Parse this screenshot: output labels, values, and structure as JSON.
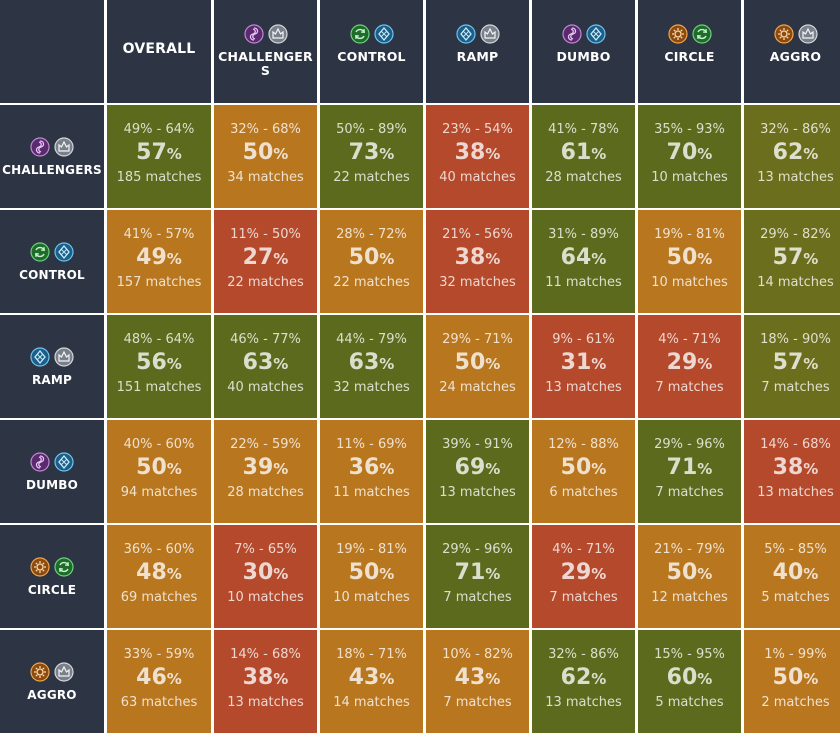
{
  "colors": {
    "header_bg": "#2d3443",
    "tier_green": "#5c6a1d",
    "tier_olive": "#6b6e1c",
    "tier_orange": "#b8761f",
    "tier_red": "#b4492b"
  },
  "percent_sign": "%",
  "matches_suffix": "matches",
  "columns": [
    {
      "key": "overall",
      "label": "OVERALL",
      "icons": []
    },
    {
      "key": "challengers",
      "label": "CHALLENGERS",
      "icons": [
        "purple-swirl-icon",
        "silver-crown-icon"
      ]
    },
    {
      "key": "control",
      "label": "CONTROL",
      "icons": [
        "green-cycle-icon",
        "blue-gem-icon"
      ]
    },
    {
      "key": "ramp",
      "label": "RAMP",
      "icons": [
        "blue-gem-icon",
        "silver-crown-icon"
      ]
    },
    {
      "key": "dumbo",
      "label": "DUMBO",
      "icons": [
        "purple-swirl-icon",
        "blue-gem-icon"
      ]
    },
    {
      "key": "circle",
      "label": "CIRCLE",
      "icons": [
        "orange-gear-icon",
        "green-cycle-icon"
      ]
    },
    {
      "key": "aggro",
      "label": "AGGRO",
      "icons": [
        "orange-gear-icon",
        "silver-crown-icon"
      ]
    }
  ],
  "rows": [
    {
      "key": "challengers",
      "label": "CHALLENGERS",
      "icons": [
        "purple-swirl-icon",
        "silver-crown-icon"
      ],
      "cells": [
        {
          "range": "49% - 64%",
          "wr": "57",
          "matches": "185",
          "tier": "green"
        },
        {
          "range": "32% - 68%",
          "wr": "50",
          "matches": "34",
          "tier": "orange"
        },
        {
          "range": "50% - 89%",
          "wr": "73",
          "matches": "22",
          "tier": "green"
        },
        {
          "range": "23% - 54%",
          "wr": "38",
          "matches": "40",
          "tier": "red"
        },
        {
          "range": "41% - 78%",
          "wr": "61",
          "matches": "28",
          "tier": "green"
        },
        {
          "range": "35% - 93%",
          "wr": "70",
          "matches": "10",
          "tier": "green"
        },
        {
          "range": "32% - 86%",
          "wr": "62",
          "matches": "13",
          "tier": "olive"
        }
      ]
    },
    {
      "key": "control",
      "label": "CONTROL",
      "icons": [
        "green-cycle-icon",
        "blue-gem-icon"
      ],
      "cells": [
        {
          "range": "41% - 57%",
          "wr": "49",
          "matches": "157",
          "tier": "orange"
        },
        {
          "range": "11% - 50%",
          "wr": "27",
          "matches": "22",
          "tier": "red"
        },
        {
          "range": "28% - 72%",
          "wr": "50",
          "matches": "22",
          "tier": "orange"
        },
        {
          "range": "21% - 56%",
          "wr": "38",
          "matches": "32",
          "tier": "red"
        },
        {
          "range": "31% - 89%",
          "wr": "64",
          "matches": "11",
          "tier": "green"
        },
        {
          "range": "19% - 81%",
          "wr": "50",
          "matches": "10",
          "tier": "orange"
        },
        {
          "range": "29% - 82%",
          "wr": "57",
          "matches": "14",
          "tier": "olive"
        }
      ]
    },
    {
      "key": "ramp",
      "label": "RAMP",
      "icons": [
        "blue-gem-icon",
        "silver-crown-icon"
      ],
      "cells": [
        {
          "range": "48% - 64%",
          "wr": "56",
          "matches": "151",
          "tier": "green"
        },
        {
          "range": "46% - 77%",
          "wr": "63",
          "matches": "40",
          "tier": "green"
        },
        {
          "range": "44% - 79%",
          "wr": "63",
          "matches": "32",
          "tier": "green"
        },
        {
          "range": "29% - 71%",
          "wr": "50",
          "matches": "24",
          "tier": "orange"
        },
        {
          "range": "9% - 61%",
          "wr": "31",
          "matches": "13",
          "tier": "red"
        },
        {
          "range": "4% - 71%",
          "wr": "29",
          "matches": "7",
          "tier": "red"
        },
        {
          "range": "18% - 90%",
          "wr": "57",
          "matches": "7",
          "tier": "olive"
        }
      ]
    },
    {
      "key": "dumbo",
      "label": "DUMBO",
      "icons": [
        "purple-swirl-icon",
        "blue-gem-icon"
      ],
      "cells": [
        {
          "range": "40% - 60%",
          "wr": "50",
          "matches": "94",
          "tier": "orange"
        },
        {
          "range": "22% - 59%",
          "wr": "39",
          "matches": "28",
          "tier": "orange"
        },
        {
          "range": "11% - 69%",
          "wr": "36",
          "matches": "11",
          "tier": "orange"
        },
        {
          "range": "39% - 91%",
          "wr": "69",
          "matches": "13",
          "tier": "green"
        },
        {
          "range": "12% - 88%",
          "wr": "50",
          "matches": "6",
          "tier": "orange"
        },
        {
          "range": "29% - 96%",
          "wr": "71",
          "matches": "7",
          "tier": "green"
        },
        {
          "range": "14% - 68%",
          "wr": "38",
          "matches": "13",
          "tier": "red"
        }
      ]
    },
    {
      "key": "circle",
      "label": "CIRCLE",
      "icons": [
        "orange-gear-icon",
        "green-cycle-icon"
      ],
      "cells": [
        {
          "range": "36% - 60%",
          "wr": "48",
          "matches": "69",
          "tier": "orange"
        },
        {
          "range": "7% - 65%",
          "wr": "30",
          "matches": "10",
          "tier": "red"
        },
        {
          "range": "19% - 81%",
          "wr": "50",
          "matches": "10",
          "tier": "orange"
        },
        {
          "range": "29% - 96%",
          "wr": "71",
          "matches": "7",
          "tier": "green"
        },
        {
          "range": "4% - 71%",
          "wr": "29",
          "matches": "7",
          "tier": "red"
        },
        {
          "range": "21% - 79%",
          "wr": "50",
          "matches": "12",
          "tier": "orange"
        },
        {
          "range": "5% - 85%",
          "wr": "40",
          "matches": "5",
          "tier": "orange"
        }
      ]
    },
    {
      "key": "aggro",
      "label": "AGGRO",
      "icons": [
        "orange-gear-icon",
        "silver-crown-icon"
      ],
      "cells": [
        {
          "range": "33% - 59%",
          "wr": "46",
          "matches": "63",
          "tier": "orange"
        },
        {
          "range": "14% - 68%",
          "wr": "38",
          "matches": "13",
          "tier": "red"
        },
        {
          "range": "18% - 71%",
          "wr": "43",
          "matches": "14",
          "tier": "orange"
        },
        {
          "range": "10% - 82%",
          "wr": "43",
          "matches": "7",
          "tier": "orange"
        },
        {
          "range": "32% - 86%",
          "wr": "62",
          "matches": "13",
          "tier": "green"
        },
        {
          "range": "15% - 95%",
          "wr": "60",
          "matches": "5",
          "tier": "green"
        },
        {
          "range": "1% - 99%",
          "wr": "50",
          "matches": "2",
          "tier": "orange"
        }
      ]
    }
  ],
  "chart_data": {
    "type": "heatmap",
    "title": "",
    "x_categories": [
      "OVERALL",
      "CHALLENGERS",
      "CONTROL",
      "RAMP",
      "DUMBO",
      "CIRCLE",
      "AGGRO"
    ],
    "y_categories": [
      "CHALLENGERS",
      "CONTROL",
      "RAMP",
      "DUMBO",
      "CIRCLE",
      "AGGRO"
    ],
    "value_unit": "%",
    "values": [
      [
        57,
        50,
        73,
        38,
        61,
        70,
        62
      ],
      [
        49,
        27,
        50,
        38,
        64,
        50,
        57
      ],
      [
        56,
        63,
        63,
        50,
        31,
        29,
        57
      ],
      [
        50,
        39,
        36,
        69,
        50,
        71,
        38
      ],
      [
        48,
        30,
        50,
        71,
        29,
        50,
        40
      ],
      [
        46,
        38,
        43,
        43,
        62,
        60,
        50
      ]
    ],
    "ranges": [
      [
        [
          49,
          64
        ],
        [
          32,
          68
        ],
        [
          50,
          89
        ],
        [
          23,
          54
        ],
        [
          41,
          78
        ],
        [
          35,
          93
        ],
        [
          32,
          86
        ]
      ],
      [
        [
          41,
          57
        ],
        [
          11,
          50
        ],
        [
          28,
          72
        ],
        [
          21,
          56
        ],
        [
          31,
          89
        ],
        [
          19,
          81
        ],
        [
          29,
          82
        ]
      ],
      [
        [
          48,
          64
        ],
        [
          46,
          77
        ],
        [
          44,
          79
        ],
        [
          29,
          71
        ],
        [
          9,
          61
        ],
        [
          4,
          71
        ],
        [
          18,
          90
        ]
      ],
      [
        [
          40,
          60
        ],
        [
          22,
          59
        ],
        [
          11,
          69
        ],
        [
          39,
          91
        ],
        [
          12,
          88
        ],
        [
          29,
          96
        ],
        [
          14,
          68
        ]
      ],
      [
        [
          36,
          60
        ],
        [
          7,
          65
        ],
        [
          19,
          81
        ],
        [
          29,
          96
        ],
        [
          4,
          71
        ],
        [
          21,
          79
        ],
        [
          5,
          85
        ]
      ],
      [
        [
          33,
          59
        ],
        [
          14,
          68
        ],
        [
          18,
          71
        ],
        [
          10,
          82
        ],
        [
          32,
          86
        ],
        [
          15,
          95
        ],
        [
          1,
          99
        ]
      ]
    ],
    "matches": [
      [
        185,
        34,
        22,
        40,
        28,
        10,
        13
      ],
      [
        157,
        22,
        22,
        32,
        11,
        10,
        14
      ],
      [
        151,
        40,
        32,
        24,
        13,
        7,
        7
      ],
      [
        94,
        28,
        11,
        13,
        6,
        7,
        13
      ],
      [
        69,
        10,
        10,
        7,
        7,
        12,
        5
      ],
      [
        63,
        13,
        14,
        7,
        13,
        5,
        2
      ]
    ]
  }
}
